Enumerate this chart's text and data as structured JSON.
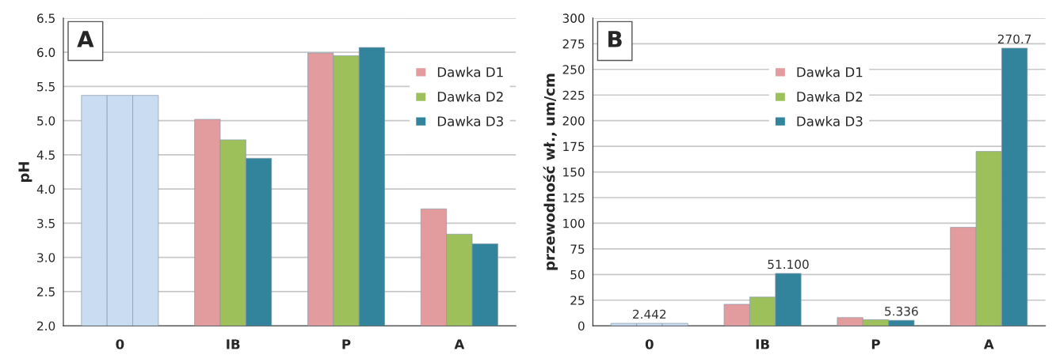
{
  "chart_data": [
    {
      "type": "bar",
      "title": "A",
      "ylabel": "pH",
      "categories": [
        "0",
        "IB",
        "P",
        "A"
      ],
      "ylim": [
        2.0,
        6.5
      ],
      "yticks": [
        {
          "value": 2.0,
          "label": "2.0"
        },
        2.5,
        {
          "value": 3.0,
          "label": "3.0"
        },
        3.5,
        {
          "value": 4.0,
          "label": "4.0"
        },
        4.5,
        {
          "value": 5.0,
          "label": "5.0"
        },
        5.5,
        {
          "value": 6.0,
          "label": "6.0"
        },
        6.5
      ],
      "grid": "y",
      "legend": "top right",
      "series": [
        {
          "name": "Dawka D1",
          "color": "#e39c9e",
          "colors": [
            "#c9dcf2",
            "#e39c9e",
            "#e39c9e",
            "#e39c9e"
          ],
          "values": [
            5.37,
            5.02,
            5.99,
            3.71
          ]
        },
        {
          "name": "Dawka D2",
          "color": "#9dc05a",
          "colors": [
            "#c9dcf2",
            "#9dc05a",
            "#9dc05a",
            "#9dc05a"
          ],
          "values": [
            5.37,
            4.72,
            5.95,
            3.34
          ]
        },
        {
          "name": "Dawka D3",
          "color": "#31849b",
          "colors": [
            "#c9dcf2",
            "#31849b",
            "#31849b",
            "#31849b"
          ],
          "values": [
            5.37,
            4.45,
            6.07,
            3.2
          ]
        }
      ]
    },
    {
      "type": "bar",
      "title": "B",
      "ylabel": "przewodność wł., um/cm",
      "categories": [
        "0",
        "IB",
        "P",
        "A"
      ],
      "ylim": [
        0,
        300
      ],
      "yticks": [
        0,
        25,
        50,
        75,
        100,
        125,
        150,
        175,
        200,
        225,
        250,
        275,
        300
      ],
      "grid": "y",
      "legend": "top",
      "series": [
        {
          "name": "Dawka D1",
          "color": "#e39c9e",
          "colors": [
            "#c9dcf2",
            "#e39c9e",
            "#e39c9e",
            "#e39c9e"
          ],
          "values": [
            2.4,
            21,
            8,
            96
          ]
        },
        {
          "name": "Dawka D2",
          "color": "#9dc05a",
          "colors": [
            "#c9dcf2",
            "#9dc05a",
            "#9dc05a",
            "#9dc05a"
          ],
          "values": [
            2.442,
            28,
            6,
            170
          ],
          "value_labels": [
            "2.442",
            null,
            null,
            null
          ]
        },
        {
          "name": "Dawka D3",
          "color": "#31849b",
          "colors": [
            "#c9dcf2",
            "#31849b",
            "#31849b",
            "#31849b"
          ],
          "values": [
            2.4,
            51.1,
            5.336,
            270.7
          ],
          "value_labels": [
            null,
            "51.100",
            "5.336",
            "270.7"
          ]
        }
      ]
    }
  ]
}
